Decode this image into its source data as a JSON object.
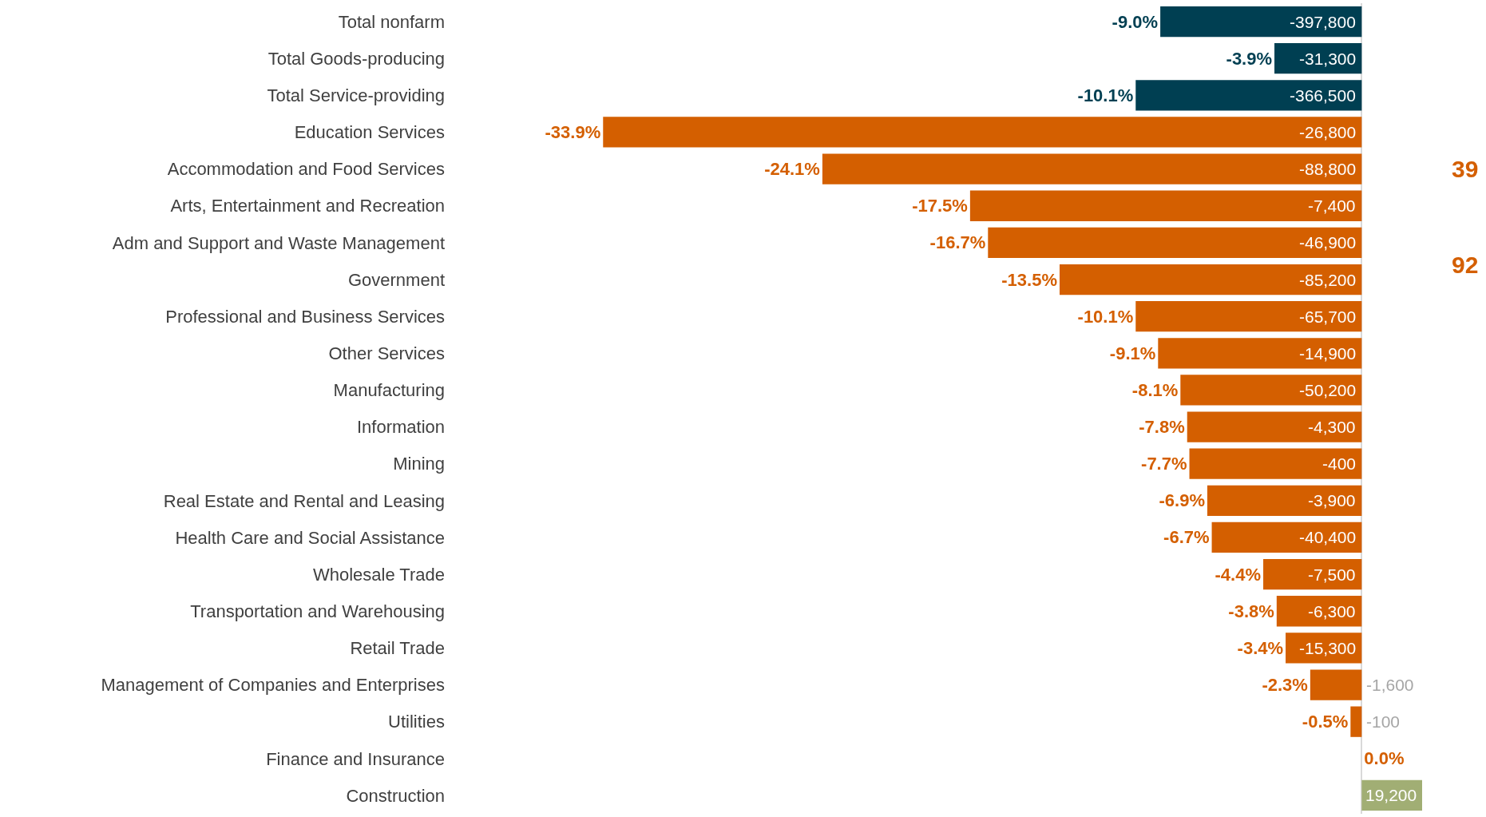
{
  "chart_data": {
    "type": "bar",
    "orientation": "horizontal",
    "categories": [
      "Total nonfarm",
      "Total Goods-producing",
      "Total Service-providing",
      "Education Services",
      "Accommodation and Food Services",
      "Arts, Entertainment and Recreation",
      "Adm and Support and Waste Management",
      "Government",
      "Professional and Business Services",
      "Other Services",
      "Manufacturing",
      "Information",
      "Mining",
      "Real Estate and Rental and Leasing",
      "Health Care and Social Assistance",
      "Wholesale Trade",
      "Transportation and Warehousing",
      "Retail Trade",
      "Management of Companies and Enterprises",
      "Utilities",
      "Finance and Insurance",
      "Construction"
    ],
    "values": [
      -9.0,
      -3.9,
      -10.1,
      -33.9,
      -24.1,
      -17.5,
      -16.7,
      -13.5,
      -10.1,
      -9.1,
      -8.1,
      -7.8,
      -7.7,
      -6.9,
      -6.7,
      -4.4,
      -3.8,
      -3.4,
      -2.3,
      -0.5,
      0.0,
      2.7
    ],
    "colors": [
      "#003f52",
      "#003f52",
      "#003f52",
      "#d45f00",
      "#d45f00",
      "#d45f00",
      "#d45f00",
      "#d45f00",
      "#d45f00",
      "#d45f00",
      "#d45f00",
      "#d45f00",
      "#d45f00",
      "#d45f00",
      "#d45f00",
      "#d45f00",
      "#d45f00",
      "#d45f00",
      "#d45f00",
      "#d45f00",
      "#d45f00",
      "#a1ae74"
    ],
    "value_labels": [
      "-9.0%",
      "-3.9%",
      "-10.1%",
      "-33.9%",
      "-24.1%",
      "-17.5%",
      "-16.7%",
      "-13.5%",
      "-10.1%",
      "-9.1%",
      "-8.1%",
      "-7.8%",
      "-7.7%",
      "-6.9%",
      "-6.7%",
      "-4.4%",
      "-3.8%",
      "-3.4%",
      "-2.3%",
      "-0.5%",
      "0.0%",
      null
    ],
    "tick_labels": "y",
    "annotations": [
      {
        "text": "-397,800",
        "y": "Total nonfarm"
      },
      {
        "text": "-31,300",
        "y": "Total Goods-producing"
      },
      {
        "text": "-366,500",
        "y": "Total Service-providing"
      },
      {
        "text": "-26,800",
        "y": "Education Services"
      },
      {
        "text": "-88,800",
        "y": "Accommodation and Food Services"
      },
      {
        "text": "-7,400",
        "y": "Arts, Entertainment and Recreation"
      },
      {
        "text": "-46,900",
        "y": "Adm and Support and Waste Management"
      },
      {
        "text": "-85,200",
        "y": "Government"
      },
      {
        "text": "-65,700",
        "y": "Professional and Business Services"
      },
      {
        "text": "-14,900",
        "y": "Other Services"
      },
      {
        "text": "-50,200",
        "y": "Manufacturing"
      },
      {
        "text": "-4,300",
        "y": "Information"
      },
      {
        "text": "-400",
        "y": "Mining"
      },
      {
        "text": "-3,900",
        "y": "Real Estate and Rental and Leasing"
      },
      {
        "text": "-40,400",
        "y": "Health Care and Social Assistance"
      },
      {
        "text": "-7,500",
        "y": "Wholesale Trade"
      },
      {
        "text": "-6,300",
        "y": "Transportation and Warehousing"
      },
      {
        "text": "-15,300",
        "y": "Retail Trade"
      },
      "-1,600",
      "-100",
      {
        "text": "19,200",
        "y": "Construction"
      },
      "39",
      "92"
    ]
  }
}
